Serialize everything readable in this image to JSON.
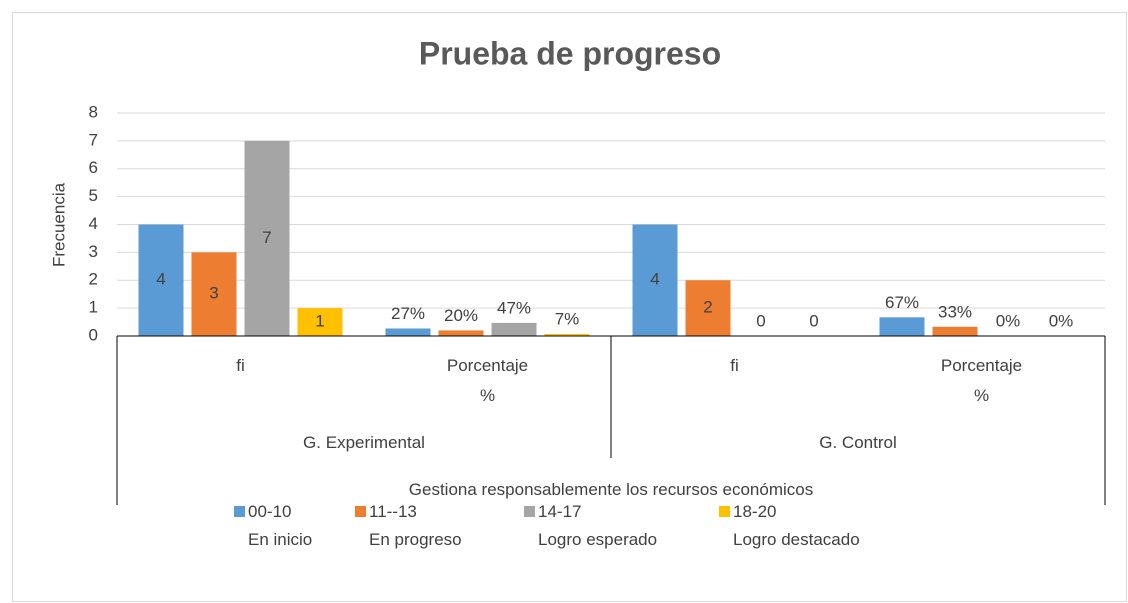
{
  "chart_data": {
    "type": "bar",
    "title": "Prueba de progreso",
    "y_label": "Frecuencia",
    "categories": [
      "fi",
      "Porcentaje\n%",
      "fi",
      "Porcentaje\n%"
    ],
    "groups": [
      "G. Experimental",
      "G. Control"
    ],
    "supergroup": "Gestiona responsablemente los recursos económicos",
    "series": [
      {
        "name": "00-10\nEn inicio",
        "color": "#5b9bd5",
        "values": [
          4,
          0.27,
          4,
          0.67
        ],
        "value_labels": [
          "4",
          "27%",
          "4",
          "67%"
        ]
      },
      {
        "name": "11--13\nEn progreso",
        "color": "#ed7d31",
        "values": [
          3,
          0.2,
          2,
          0.33
        ],
        "value_labels": [
          "3",
          "20%",
          "2",
          "33%"
        ]
      },
      {
        "name": "14-17\nLogro esperado",
        "color": "#a5a5a5",
        "values": [
          7,
          0.47,
          0,
          0
        ],
        "value_labels": [
          "7",
          "47%",
          "0",
          "0%"
        ]
      },
      {
        "name": "18-20\nLogro destacado",
        "color": "#ffc000",
        "values": [
          1,
          0.07,
          0,
          0
        ],
        "value_labels": [
          "1",
          "7%",
          "0",
          "0%"
        ]
      }
    ],
    "ylim": [
      0,
      8
    ],
    "yticks": [
      0,
      1,
      2,
      3,
      4,
      5,
      6,
      7,
      8
    ],
    "grid": true,
    "legend": "bottom"
  }
}
